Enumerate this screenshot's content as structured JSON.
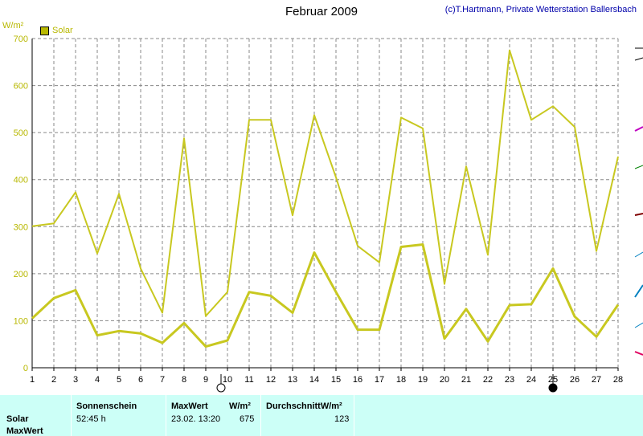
{
  "header": {
    "title": "Februar 2009",
    "credit": "(c)T.Hartmann, Private Wetterstation Ballersbach"
  },
  "legend": {
    "label": "Solar",
    "color": "#b8b800"
  },
  "chart_data": {
    "type": "line",
    "ylabel": "W/m²",
    "ylim": [
      0,
      700
    ],
    "yticks": [
      0,
      100,
      200,
      300,
      400,
      500,
      600,
      700
    ],
    "xticks": [
      1,
      2,
      3,
      4,
      5,
      6,
      7,
      8,
      9,
      10,
      11,
      12,
      13,
      14,
      15,
      16,
      17,
      18,
      19,
      20,
      21,
      22,
      23,
      24,
      25,
      26,
      27,
      28
    ],
    "grid": true,
    "series": [
      {
        "name": "Solar",
        "role": "max",
        "color": "#c8c820",
        "x": [
          1,
          2,
          3,
          4,
          5,
          6,
          7,
          8,
          9,
          10,
          11,
          12,
          13,
          14,
          15,
          16,
          17,
          18,
          19,
          20,
          21,
          22,
          23,
          24,
          25,
          26,
          27,
          28
        ],
        "values": [
          301,
          307,
          373,
          243,
          370,
          211,
          117,
          488,
          110,
          161,
          527,
          527,
          324,
          537,
          405,
          259,
          224,
          532,
          509,
          178,
          428,
          240,
          675,
          527,
          556,
          512,
          248,
          449
        ]
      },
      {
        "name": "Solar",
        "role": "average",
        "color": "#c8c820",
        "x": [
          1,
          2,
          3,
          4,
          5,
          6,
          7,
          8,
          9,
          10,
          11,
          12,
          13,
          14,
          15,
          16,
          17,
          18,
          19,
          20,
          21,
          22,
          23,
          24,
          25,
          26,
          27,
          28
        ],
        "values": [
          105,
          148,
          165,
          69,
          78,
          73,
          53,
          95,
          45,
          58,
          161,
          153,
          117,
          245,
          161,
          81,
          81,
          257,
          262,
          62,
          125,
          56,
          133,
          135,
          211,
          109,
          66,
          134
        ]
      }
    ]
  },
  "table": {
    "headers": {
      "sunshine": "Sonnenschein",
      "maxwert": "MaxWert",
      "maxwert_unit": "W/m²",
      "durchschnitt": "DurchschnittW/m²"
    },
    "row_labels": [
      "Solar",
      "MaxWert"
    ],
    "values": {
      "sunshine": "52:45 h",
      "max_time": "23.02.  13:20",
      "max_value": "675",
      "average": "123"
    }
  }
}
